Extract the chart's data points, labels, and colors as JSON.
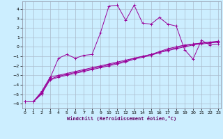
{
  "xlabel": "Windchill (Refroidissement éolien,°C)",
  "background_color": "#cceeff",
  "grid_color": "#aabbcc",
  "line_color": "#990099",
  "x_ticks": [
    0,
    1,
    2,
    3,
    4,
    5,
    6,
    7,
    8,
    9,
    10,
    11,
    12,
    13,
    14,
    15,
    16,
    17,
    18,
    19,
    20,
    21,
    22,
    23
  ],
  "y_ticks": [
    -6,
    -5,
    -4,
    -3,
    -2,
    -1,
    0,
    1,
    2,
    3,
    4
  ],
  "xlim": [
    -0.3,
    23.3
  ],
  "ylim": [
    -6.5,
    4.8
  ],
  "series": [
    {
      "x": [
        0,
        1,
        2,
        3,
        4,
        5,
        6,
        7,
        8,
        9,
        10,
        11,
        12,
        13,
        14,
        15,
        16,
        17,
        18,
        19,
        20,
        21,
        22,
        23
      ],
      "y": [
        -5.8,
        -5.8,
        -4.7,
        -3.2,
        -3.0,
        -2.8,
        -2.6,
        -2.4,
        -2.2,
        -2.0,
        -1.8,
        -1.6,
        -1.4,
        -1.2,
        -1.0,
        -0.8,
        -0.6,
        -0.4,
        -0.2,
        0.0,
        0.2,
        0.3,
        0.4,
        0.5
      ]
    },
    {
      "x": [
        0,
        1,
        2,
        3,
        4,
        5,
        6,
        7,
        8,
        9,
        10,
        11,
        12,
        13,
        14,
        15,
        16,
        17,
        18,
        19,
        20,
        21,
        22,
        23
      ],
      "y": [
        -5.8,
        -5.8,
        -4.9,
        -3.5,
        -3.2,
        -3.0,
        -2.8,
        -2.6,
        -2.4,
        -2.2,
        -2.0,
        -1.8,
        -1.6,
        -1.3,
        -1.1,
        -0.9,
        -0.6,
        -0.3,
        -0.1,
        0.1,
        0.3,
        0.4,
        0.5,
        0.5
      ]
    },
    {
      "x": [
        0,
        1,
        2,
        3,
        4,
        5,
        6,
        7,
        8,
        9,
        10,
        11,
        12,
        13,
        14,
        15,
        16,
        17,
        18,
        19,
        20,
        21,
        22,
        23
      ],
      "y": [
        -5.8,
        -5.8,
        -5.0,
        -3.4,
        -3.1,
        -2.9,
        -2.7,
        -2.5,
        -2.3,
        -2.1,
        -1.9,
        -1.7,
        -1.5,
        -1.2,
        -1.0,
        -0.8,
        -0.5,
        -0.2,
        0.0,
        0.2,
        0.3,
        0.4,
        0.5,
        0.6
      ]
    },
    {
      "x": [
        0,
        1,
        2,
        3,
        4,
        5,
        6,
        7,
        8,
        9,
        10,
        11,
        12,
        13,
        14,
        15,
        16,
        17,
        18,
        19,
        20,
        21,
        22,
        23
      ],
      "y": [
        -5.8,
        -5.8,
        -4.8,
        -3.3,
        -1.2,
        -0.8,
        -1.2,
        -0.9,
        -0.8,
        1.5,
        4.3,
        4.4,
        2.8,
        4.4,
        2.5,
        2.4,
        3.1,
        2.4,
        2.2,
        -0.3,
        -1.3,
        0.7,
        0.2,
        0.3
      ]
    }
  ]
}
